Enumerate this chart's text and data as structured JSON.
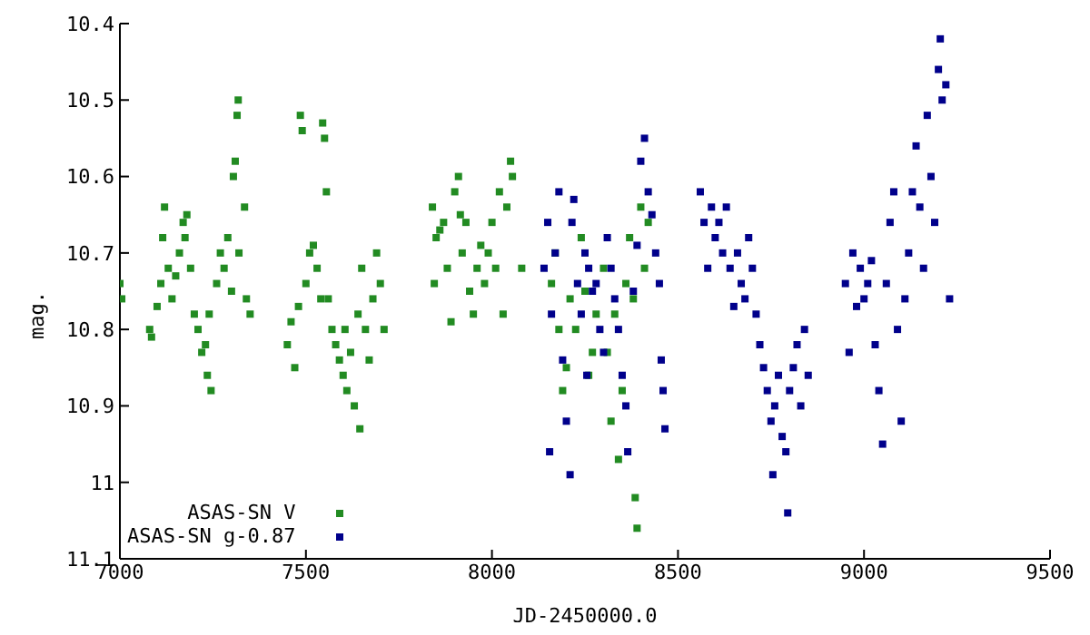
{
  "chart_data": {
    "type": "scatter",
    "xlabel": "JD-2450000.0",
    "ylabel": "mag.",
    "xlim": [
      7000,
      9500
    ],
    "xticks": [
      7000,
      7500,
      8000,
      8500,
      9000,
      9500
    ],
    "ylim": [
      11.1,
      10.4
    ],
    "yticks": [
      10.4,
      10.5,
      10.6,
      10.7,
      10.8,
      10.9,
      11,
      11.1
    ],
    "grid": false,
    "legend": "bottom left",
    "marker": "square",
    "series": [
      {
        "name": "ASAS-SN V",
        "color": "#228b22",
        "x": [
          7000,
          7005,
          7080,
          7085,
          7100,
          7110,
          7115,
          7120,
          7130,
          7140,
          7150,
          7160,
          7170,
          7175,
          7180,
          7190,
          7200,
          7210,
          7220,
          7230,
          7235,
          7240,
          7245,
          7260,
          7270,
          7280,
          7290,
          7300,
          7305,
          7310,
          7315,
          7318,
          7320,
          7335,
          7340,
          7350,
          7450,
          7460,
          7470,
          7480,
          7485,
          7490,
          7500,
          7510,
          7520,
          7530,
          7540,
          7545,
          7550,
          7555,
          7560,
          7570,
          7580,
          7590,
          7600,
          7605,
          7610,
          7620,
          7630,
          7640,
          7645,
          7650,
          7660,
          7670,
          7680,
          7690,
          7700,
          7710,
          7840,
          7845,
          7850,
          7860,
          7870,
          7880,
          7890,
          7900,
          7910,
          7915,
          7920,
          7930,
          7940,
          7950,
          7960,
          7970,
          7980,
          7990,
          8000,
          8010,
          8020,
          8030,
          8040,
          8050,
          8055,
          8080,
          8160,
          8170,
          8180,
          8190,
          8200,
          8210,
          8225,
          8240,
          8250,
          8260,
          8270,
          8280,
          8300,
          8310,
          8320,
          8330,
          8340,
          8350,
          8360,
          8370,
          8380,
          8385,
          8390,
          8400,
          8410,
          8420
        ],
        "values": [
          10.74,
          10.76,
          10.8,
          10.81,
          10.77,
          10.74,
          10.68,
          10.64,
          10.72,
          10.76,
          10.73,
          10.7,
          10.66,
          10.68,
          10.65,
          10.72,
          10.78,
          10.8,
          10.83,
          10.82,
          10.86,
          10.78,
          10.88,
          10.74,
          10.7,
          10.72,
          10.68,
          10.75,
          10.6,
          10.58,
          10.52,
          10.5,
          10.7,
          10.64,
          10.76,
          10.78,
          10.82,
          10.79,
          10.85,
          10.77,
          10.52,
          10.54,
          10.74,
          10.7,
          10.69,
          10.72,
          10.76,
          10.53,
          10.55,
          10.62,
          10.76,
          10.8,
          10.82,
          10.84,
          10.86,
          10.8,
          10.88,
          10.83,
          10.9,
          10.78,
          10.93,
          10.72,
          10.8,
          10.84,
          10.76,
          10.7,
          10.74,
          10.8,
          10.64,
          10.74,
          10.68,
          10.67,
          10.66,
          10.72,
          10.79,
          10.62,
          10.6,
          10.65,
          10.7,
          10.66,
          10.75,
          10.78,
          10.72,
          10.69,
          10.74,
          10.7,
          10.66,
          10.72,
          10.62,
          10.78,
          10.64,
          10.58,
          10.6,
          10.72,
          10.74,
          10.7,
          10.8,
          10.88,
          10.85,
          10.76,
          10.8,
          10.68,
          10.75,
          10.86,
          10.83,
          10.78,
          10.72,
          10.83,
          10.92,
          10.78,
          10.97,
          10.88,
          10.74,
          10.68,
          10.76,
          11.02,
          11.06,
          10.64,
          10.72,
          10.66
        ]
      },
      {
        "name": "ASAS-SN g-0.87",
        "color": "#00008b",
        "x": [
          8140,
          8150,
          8155,
          8160,
          8170,
          8180,
          8190,
          8200,
          8210,
          8215,
          8220,
          8230,
          8240,
          8250,
          8255,
          8260,
          8270,
          8280,
          8290,
          8300,
          8310,
          8320,
          8330,
          8340,
          8350,
          8360,
          8365,
          8380,
          8390,
          8400,
          8410,
          8420,
          8430,
          8440,
          8450,
          8455,
          8460,
          8465,
          8560,
          8570,
          8580,
          8590,
          8600,
          8610,
          8620,
          8630,
          8640,
          8650,
          8660,
          8670,
          8680,
          8690,
          8700,
          8710,
          8720,
          8730,
          8740,
          8750,
          8755,
          8760,
          8770,
          8780,
          8790,
          8795,
          8800,
          8810,
          8820,
          8830,
          8840,
          8850,
          8950,
          8960,
          8970,
          8980,
          8990,
          9000,
          9010,
          9020,
          9030,
          9040,
          9050,
          9060,
          9070,
          9080,
          9090,
          9100,
          9110,
          9120,
          9130,
          9140,
          9150,
          9160,
          9170,
          9180,
          9190,
          9200,
          9205,
          9210,
          9220,
          9230
        ],
        "values": [
          10.72,
          10.66,
          10.96,
          10.78,
          10.7,
          10.62,
          10.84,
          10.92,
          10.99,
          10.66,
          10.63,
          10.74,
          10.78,
          10.7,
          10.86,
          10.72,
          10.75,
          10.74,
          10.8,
          10.83,
          10.68,
          10.72,
          10.76,
          10.8,
          10.86,
          10.9,
          10.96,
          10.75,
          10.69,
          10.58,
          10.55,
          10.62,
          10.65,
          10.7,
          10.74,
          10.84,
          10.88,
          10.93,
          10.62,
          10.66,
          10.72,
          10.64,
          10.68,
          10.66,
          10.7,
          10.64,
          10.72,
          10.77,
          10.7,
          10.74,
          10.76,
          10.68,
          10.72,
          10.78,
          10.82,
          10.85,
          10.88,
          10.92,
          10.99,
          10.9,
          10.86,
          10.94,
          10.96,
          11.04,
          10.88,
          10.85,
          10.82,
          10.9,
          10.8,
          10.86,
          10.74,
          10.83,
          10.7,
          10.77,
          10.72,
          10.76,
          10.74,
          10.71,
          10.82,
          10.88,
          10.95,
          10.74,
          10.66,
          10.62,
          10.8,
          10.92,
          10.76,
          10.7,
          10.62,
          10.56,
          10.64,
          10.72,
          10.52,
          10.6,
          10.66,
          10.46,
          10.42,
          10.5,
          10.48,
          10.76
        ]
      }
    ]
  }
}
